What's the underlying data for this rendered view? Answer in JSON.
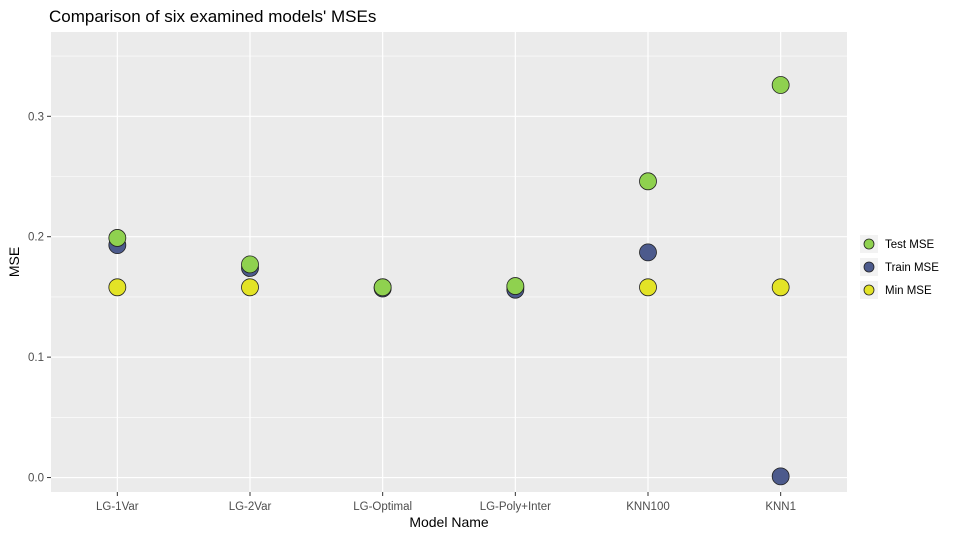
{
  "chart_data": {
    "type": "scatter",
    "title": "Comparison of six examined models' MSEs",
    "xlabel": "Model Name",
    "ylabel": "MSE",
    "categories": [
      "LG-1Var",
      "LG-2Var",
      "LG-Optimal",
      "LG-Poly+Inter",
      "KNN100",
      "KNN1"
    ],
    "ylim": [
      -0.012,
      0.37
    ],
    "yticks": [
      0.0,
      0.1,
      0.2,
      0.3
    ],
    "ytick_labels": [
      "0.0",
      "0.1",
      "0.2",
      "0.3"
    ],
    "grid": true,
    "legend_position": "right",
    "series": [
      {
        "name": "Test MSE",
        "color": "#8fd14f",
        "values": [
          0.199,
          0.177,
          0.158,
          0.159,
          0.246,
          0.326
        ]
      },
      {
        "name": "Train MSE",
        "color": "#4c5a8c",
        "values": [
          0.193,
          0.174,
          0.157,
          0.156,
          0.187,
          0.001
        ]
      },
      {
        "name": "Min MSE",
        "color": "#e3e326",
        "values": [
          0.158,
          0.158,
          0.158,
          0.158,
          0.158,
          0.158
        ]
      }
    ],
    "draw_order": [
      "Min MSE",
      "Train MSE",
      "Test MSE"
    ]
  }
}
